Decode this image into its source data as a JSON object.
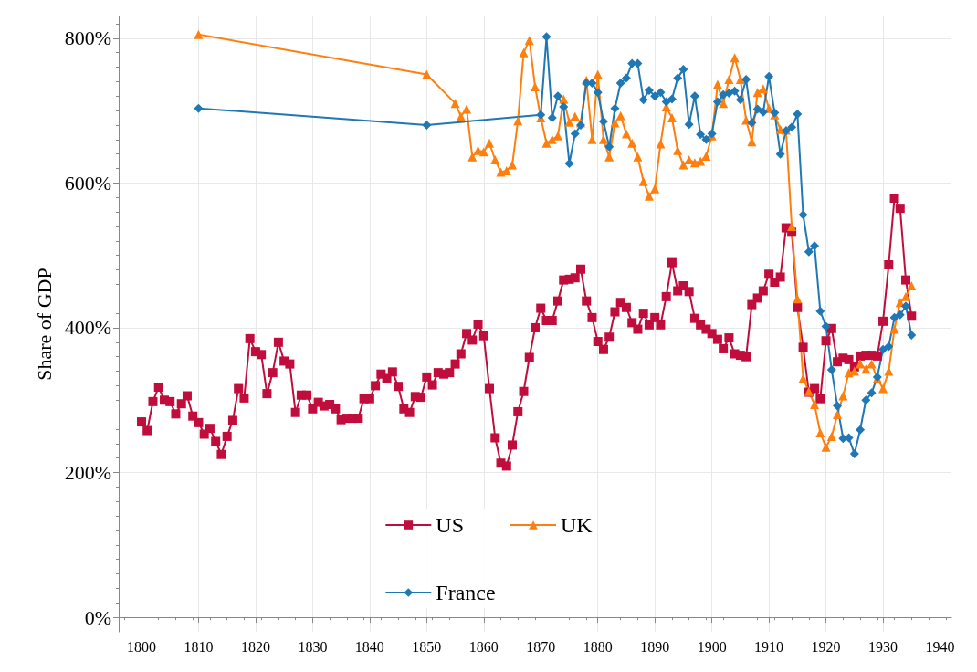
{
  "chart_data": {
    "type": "line",
    "ylabel": "Share of GDP",
    "xlim": [
      1796,
      1942
    ],
    "ylim": [
      -20,
      830
    ],
    "xticks": [
      1800,
      1810,
      1820,
      1830,
      1840,
      1850,
      1860,
      1870,
      1880,
      1890,
      1900,
      1910,
      1920,
      1930,
      1940
    ],
    "yticks": [
      {
        "value": 0,
        "label": "0%"
      },
      {
        "value": 200,
        "label": "200%"
      },
      {
        "value": 400,
        "label": "400%"
      },
      {
        "value": 600,
        "label": "600%"
      },
      {
        "value": 800,
        "label": "800%"
      }
    ],
    "grid": true,
    "legend": "bottom",
    "series": [
      {
        "name": "US",
        "color": "#c00d3c",
        "marker": "square",
        "x": [
          1800,
          1801,
          1802,
          1803,
          1804,
          1805,
          1806,
          1807,
          1808,
          1809,
          1810,
          1811,
          1812,
          1813,
          1814,
          1815,
          1816,
          1817,
          1818,
          1819,
          1820,
          1821,
          1822,
          1823,
          1824,
          1825,
          1826,
          1827,
          1828,
          1829,
          1830,
          1831,
          1832,
          1833,
          1834,
          1835,
          1836,
          1837,
          1838,
          1839,
          1840,
          1841,
          1842,
          1843,
          1844,
          1845,
          1846,
          1847,
          1848,
          1849,
          1850,
          1851,
          1852,
          1853,
          1854,
          1855,
          1856,
          1857,
          1858,
          1859,
          1860,
          1861,
          1862,
          1863,
          1864,
          1865,
          1866,
          1867,
          1868,
          1869,
          1870,
          1871,
          1872,
          1873,
          1874,
          1875,
          1876,
          1877,
          1878,
          1879,
          1880,
          1881,
          1882,
          1883,
          1884,
          1885,
          1886,
          1887,
          1888,
          1889,
          1890,
          1891,
          1892,
          1893,
          1894,
          1895,
          1896,
          1897,
          1898,
          1899,
          1900,
          1901,
          1902,
          1903,
          1904,
          1905,
          1906,
          1907,
          1908,
          1909,
          1910,
          1911,
          1912,
          1913,
          1914,
          1915,
          1916,
          1917,
          1918,
          1919,
          1920,
          1921,
          1922,
          1923,
          1924,
          1925,
          1926,
          1927,
          1928,
          1929,
          1930,
          1931,
          1932,
          1933,
          1934,
          1935
        ],
        "values": [
          270,
          258,
          298,
          318,
          300,
          298,
          281,
          295,
          306,
          278,
          269,
          253,
          261,
          243,
          225,
          250,
          272,
          316,
          303,
          385,
          367,
          363,
          309,
          338,
          380,
          354,
          350,
          283,
          307,
          307,
          288,
          297,
          292,
          294,
          288,
          273,
          275,
          275,
          275,
          302,
          302,
          320,
          336,
          330,
          339,
          319,
          288,
          283,
          305,
          304,
          332,
          321,
          338,
          336,
          338,
          350,
          364,
          392,
          383,
          405,
          389,
          316,
          248,
          213,
          209,
          238,
          284,
          312,
          359,
          400,
          427,
          410,
          410,
          437,
          466,
          467,
          469,
          481,
          437,
          414,
          381,
          370,
          387,
          422,
          435,
          428,
          407,
          398,
          420,
          404,
          414,
          404,
          443,
          490,
          451,
          458,
          450,
          413,
          404,
          398,
          392,
          384,
          371,
          386,
          364,
          362,
          360,
          432,
          441,
          451,
          474,
          463,
          470,
          538,
          532,
          428,
          373,
          311,
          316,
          302,
          382,
          399,
          353,
          358,
          356,
          346,
          361,
          362,
          362,
          361,
          409,
          487,
          579,
          565,
          466,
          416
        ]
      },
      {
        "name": "UK",
        "color": "#ff7f0e",
        "marker": "triangle",
        "x": [
          1810,
          1850,
          1855,
          1856,
          1857,
          1858,
          1859,
          1860,
          1861,
          1862,
          1863,
          1864,
          1865,
          1866,
          1867,
          1868,
          1869,
          1870,
          1871,
          1872,
          1873,
          1874,
          1875,
          1876,
          1877,
          1878,
          1879,
          1880,
          1881,
          1882,
          1883,
          1884,
          1885,
          1886,
          1887,
          1888,
          1889,
          1890,
          1891,
          1892,
          1893,
          1894,
          1895,
          1896,
          1897,
          1898,
          1899,
          1900,
          1901,
          1902,
          1903,
          1904,
          1905,
          1906,
          1907,
          1908,
          1909,
          1910,
          1911,
          1912,
          1913,
          1914,
          1915,
          1916,
          1917,
          1918,
          1919,
          1920,
          1921,
          1922,
          1923,
          1924,
          1925,
          1926,
          1927,
          1928,
          1929,
          1930,
          1931,
          1932,
          1933,
          1934,
          1935
        ],
        "values": [
          805,
          750,
          710,
          692,
          702,
          636,
          645,
          643,
          655,
          632,
          615,
          617,
          625,
          686,
          780,
          797,
          733,
          690,
          655,
          660,
          665,
          716,
          684,
          692,
          683,
          742,
          660,
          750,
          660,
          636,
          683,
          693,
          668,
          655,
          636,
          602,
          582,
          592,
          654,
          705,
          690,
          645,
          625,
          632,
          628,
          630,
          637,
          665,
          736,
          710,
          743,
          773,
          743,
          687,
          657,
          725,
          730,
          703,
          694,
          674,
          673,
          540,
          440,
          330,
          312,
          294,
          255,
          235,
          250,
          280,
          306,
          338,
          340,
          350,
          343,
          350,
          330,
          316,
          340,
          398,
          435,
          443,
          458
        ]
      },
      {
        "name": "France",
        "color": "#1f77b4",
        "marker": "diamond",
        "x": [
          1810,
          1850,
          1870,
          1871,
          1872,
          1873,
          1874,
          1875,
          1876,
          1877,
          1878,
          1879,
          1880,
          1881,
          1882,
          1883,
          1884,
          1885,
          1886,
          1887,
          1888,
          1889,
          1890,
          1891,
          1892,
          1893,
          1894,
          1895,
          1896,
          1897,
          1898,
          1899,
          1900,
          1901,
          1902,
          1903,
          1904,
          1905,
          1906,
          1907,
          1908,
          1909,
          1910,
          1911,
          1912,
          1913,
          1914,
          1915,
          1916,
          1917,
          1918,
          1919,
          1920,
          1921,
          1922,
          1923,
          1924,
          1925,
          1926,
          1927,
          1928,
          1929,
          1930,
          1931,
          1932,
          1933,
          1934,
          1935
        ],
        "values": [
          703,
          680,
          694,
          802,
          690,
          720,
          705,
          627,
          668,
          680,
          738,
          738,
          725,
          685,
          650,
          703,
          738,
          745,
          765,
          765,
          715,
          728,
          720,
          725,
          712,
          716,
          745,
          757,
          681,
          720,
          667,
          660,
          668,
          712,
          722,
          724,
          727,
          715,
          743,
          683,
          702,
          698,
          747,
          697,
          640,
          672,
          677,
          695,
          556,
          505,
          513,
          423,
          402,
          342,
          292,
          247,
          248,
          226,
          259,
          300,
          310,
          332,
          370,
          374,
          414,
          418,
          430,
          390
        ]
      }
    ]
  }
}
